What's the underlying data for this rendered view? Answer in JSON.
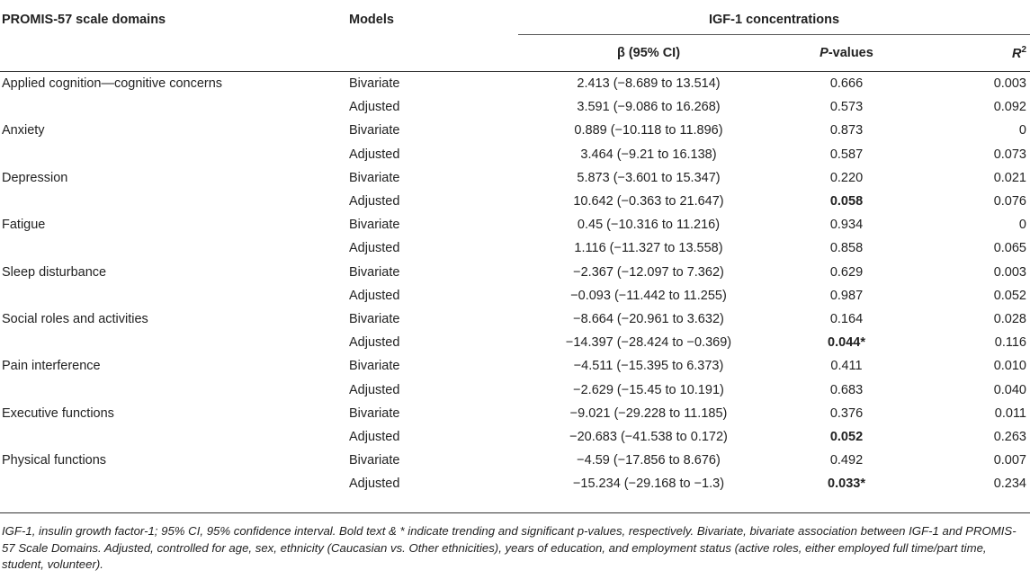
{
  "headers": {
    "domain": "PROMIS-57 scale domains",
    "models": "Models",
    "igf": "IGF-1 concentrations",
    "beta": "β (95% CI)",
    "p_italic": "P",
    "p_rest": "-values",
    "r": "R",
    "r_sup": "2"
  },
  "rows": [
    {
      "domain": "Applied cognition—cognitive concerns",
      "model": "Bivariate",
      "beta": "2.413 (−8.689 to 13.514)",
      "p": "0.666",
      "p_bold": false,
      "r2": "0.003"
    },
    {
      "domain": "",
      "model": "Adjusted",
      "beta": "3.591 (−9.086 to 16.268)",
      "p": "0.573",
      "p_bold": false,
      "r2": "0.092"
    },
    {
      "domain": "Anxiety",
      "model": "Bivariate",
      "beta": "0.889 (−10.118 to 11.896)",
      "p": "0.873",
      "p_bold": false,
      "r2": "0"
    },
    {
      "domain": "",
      "model": "Adjusted",
      "beta": "3.464 (−9.21 to 16.138)",
      "p": "0.587",
      "p_bold": false,
      "r2": "0.073"
    },
    {
      "domain": "Depression",
      "model": "Bivariate",
      "beta": "5.873 (−3.601 to 15.347)",
      "p": "0.220",
      "p_bold": false,
      "r2": "0.021"
    },
    {
      "domain": "",
      "model": "Adjusted",
      "beta": "10.642 (−0.363 to 21.647)",
      "p": "0.058",
      "p_bold": true,
      "r2": "0.076"
    },
    {
      "domain": "Fatigue",
      "model": "Bivariate",
      "beta": "0.45 (−10.316 to 11.216)",
      "p": "0.934",
      "p_bold": false,
      "r2": "0"
    },
    {
      "domain": "",
      "model": "Adjusted",
      "beta": "1.116 (−11.327 to 13.558)",
      "p": "0.858",
      "p_bold": false,
      "r2": "0.065"
    },
    {
      "domain": "Sleep disturbance",
      "model": "Bivariate",
      "beta": "−2.367 (−12.097 to 7.362)",
      "p": "0.629",
      "p_bold": false,
      "r2": "0.003"
    },
    {
      "domain": "",
      "model": "Adjusted",
      "beta": "−0.093 (−11.442 to 11.255)",
      "p": "0.987",
      "p_bold": false,
      "r2": "0.052"
    },
    {
      "domain": "Social roles and activities",
      "model": "Bivariate",
      "beta": "−8.664 (−20.961 to 3.632)",
      "p": "0.164",
      "p_bold": false,
      "r2": "0.028"
    },
    {
      "domain": "",
      "model": "Adjusted",
      "beta": "−14.397 (−28.424 to −0.369)",
      "p": "0.044*",
      "p_bold": true,
      "r2": "0.116"
    },
    {
      "domain": "Pain interference",
      "model": "Bivariate",
      "beta": "−4.511 (−15.395 to 6.373)",
      "p": "0.411",
      "p_bold": false,
      "r2": "0.010"
    },
    {
      "domain": "",
      "model": "Adjusted",
      "beta": "−2.629 (−15.45 to 10.191)",
      "p": "0.683",
      "p_bold": false,
      "r2": "0.040"
    },
    {
      "domain": "Executive functions",
      "model": "Bivariate",
      "beta": "−9.021 (−29.228 to 11.185)",
      "p": "0.376",
      "p_bold": false,
      "r2": "0.011"
    },
    {
      "domain": "",
      "model": "Adjusted",
      "beta": "−20.683 (−41.538 to 0.172)",
      "p": "0.052",
      "p_bold": true,
      "r2": "0.263"
    },
    {
      "domain": "Physical functions",
      "model": "Bivariate",
      "beta": "−4.59 (−17.856 to 8.676)",
      "p": "0.492",
      "p_bold": false,
      "r2": "0.007"
    },
    {
      "domain": "",
      "model": "Adjusted",
      "beta": "−15.234 (−29.168 to −1.3)",
      "p": "0.033*",
      "p_bold": true,
      "r2": "0.234"
    }
  ],
  "footnote": "IGF-1, insulin growth factor-1; 95% CI, 95% confidence interval. Bold text & * indicate trending and significant p-values, respectively. Bivariate, bivariate association between IGF-1 and PROMIS-57 Scale Domains. Adjusted, controlled for age, sex, ethnicity (Caucasian vs. Other ethnicities), years of education, and employment status (active roles, either employed full time/part time, student, volunteer)."
}
